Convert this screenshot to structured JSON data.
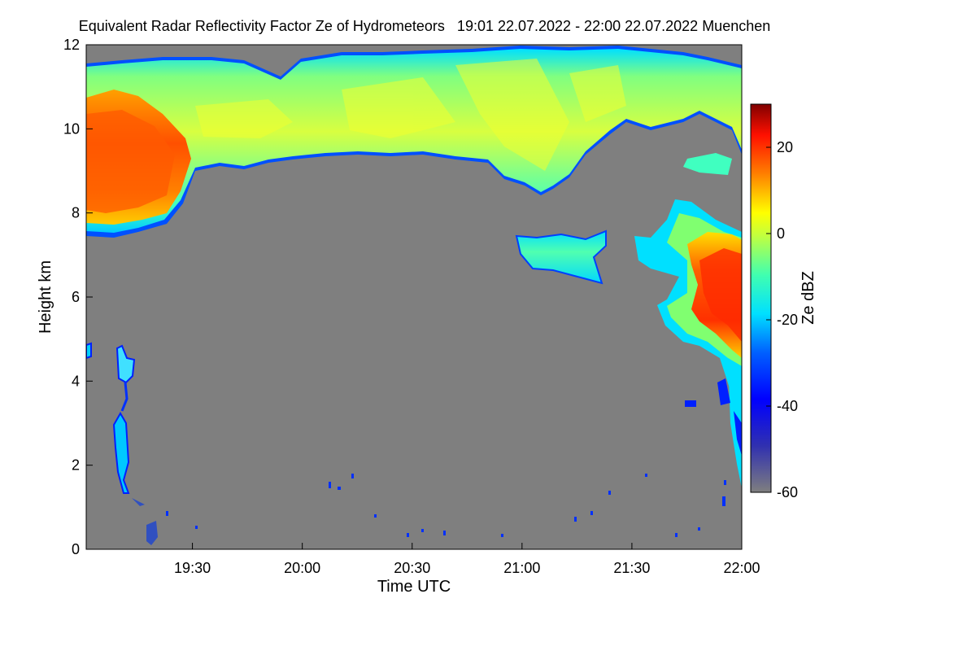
{
  "chart_data": {
    "type": "heatmap",
    "title": "Equivalent Radar Reflectivity Factor Ze of Hydrometeors   19:01 22.07.2022 - 22:00 22.07.2022 Muenchen",
    "xlabel": "Time UTC",
    "ylabel": "Height km",
    "colorbar_label": "Ze dBZ",
    "x_range_minutes": [
      0,
      59,
      0,
      60
    ],
    "x_start": "19:01",
    "x_end": "22:00",
    "xticks": [
      {
        "label": "19:30",
        "t": 29
      },
      {
        "label": "20:00",
        "t": 59
      },
      {
        "label": "20:30",
        "t": 89
      },
      {
        "label": "21:00",
        "t": 119
      },
      {
        "label": "21:30",
        "t": 149
      },
      {
        "label": "22:00",
        "t": 179
      }
    ],
    "ylim": [
      0,
      12
    ],
    "yticks": [
      "0",
      "2",
      "4",
      "6",
      "8",
      "10",
      "12"
    ],
    "colorbar_range": [
      -60,
      30
    ],
    "colorbar_ticks": [
      "20",
      "0",
      "-20",
      "-40",
      "-60"
    ],
    "background_color": "#7f7f7f",
    "features": [
      {
        "name": "upper cloud",
        "t_start": 0,
        "t_end": 179,
        "base_km": 8.5,
        "top_km": 11.6,
        "ze_dbz": -10
      },
      {
        "name": "intense core early",
        "t_start": 0,
        "t_end": 27,
        "base_km": 7.7,
        "top_km": 10.8,
        "ze_dbz": 12
      },
      {
        "name": "mid-level cloud",
        "t_start": 117,
        "t_end": 141,
        "base_km": 6.4,
        "top_km": 7.3,
        "ze_dbz": -22
      },
      {
        "name": "intense core late",
        "t_start": 163,
        "t_end": 179,
        "base_km": 4.7,
        "top_km": 7.2,
        "ze_dbz": 14
      }
    ]
  }
}
